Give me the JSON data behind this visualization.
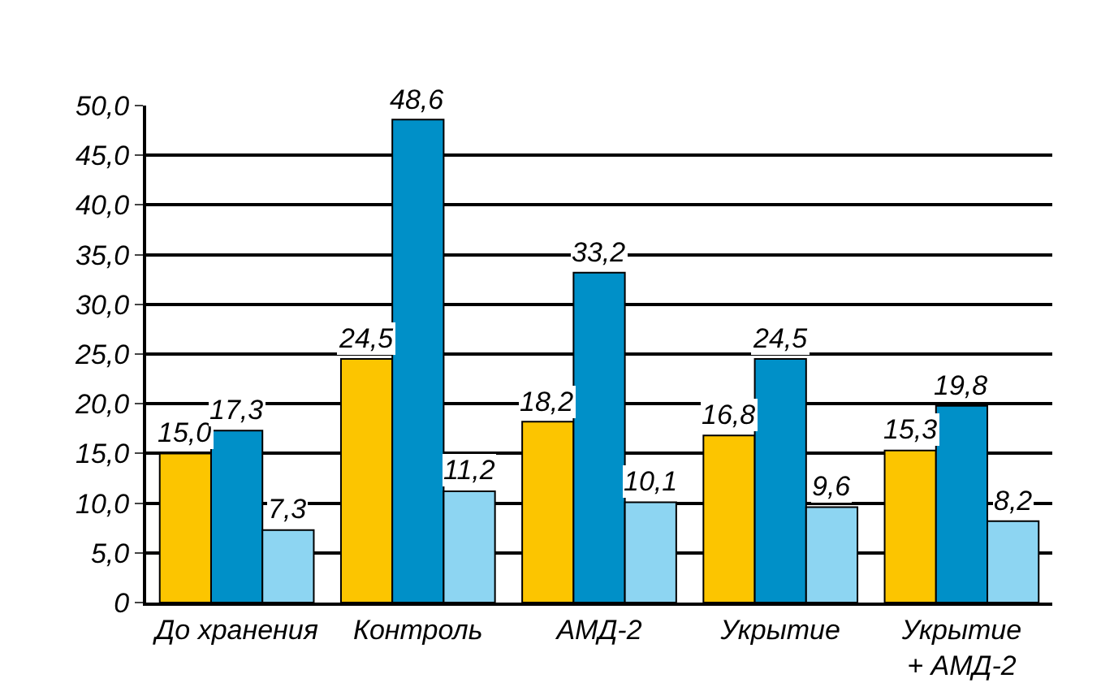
{
  "chart_data": {
    "type": "bar",
    "categories": [
      "До хранения",
      "Контроль",
      "АМД-2",
      "Укрытие",
      "Укрытие\n+ АМД-2"
    ],
    "series": [
      {
        "color": "#fcc500",
        "values": [
          15.0,
          24.5,
          18.2,
          16.8,
          15.3
        ]
      },
      {
        "color": "#0090c8",
        "values": [
          17.3,
          48.6,
          33.2,
          24.5,
          19.8
        ]
      },
      {
        "color": "#8dd5f2",
        "values": [
          7.3,
          11.2,
          10.1,
          9.6,
          8.2
        ]
      }
    ],
    "value_labels": [
      [
        "15,0",
        "24,5",
        "18,2",
        "16,8",
        "15,3"
      ],
      [
        "17,3",
        "48,6",
        "33,2",
        "24,5",
        "19,8"
      ],
      [
        "7,3",
        "11,2",
        "10,1",
        "9,6",
        "8,2"
      ]
    ],
    "ylim": [
      0,
      50
    ],
    "yticks": [
      {
        "value": 0,
        "label": "0"
      },
      {
        "value": 5,
        "label": "5,0"
      },
      {
        "value": 10,
        "label": "10,0"
      },
      {
        "value": 15,
        "label": "15,0"
      },
      {
        "value": 20,
        "label": "20,0"
      },
      {
        "value": 25,
        "label": "25,0"
      },
      {
        "value": 30,
        "label": "30,0"
      },
      {
        "value": 35,
        "label": "35,0"
      },
      {
        "value": 40,
        "label": "40,0"
      },
      {
        "value": 45,
        "label": "45,0"
      },
      {
        "value": 50,
        "label": "50,0"
      }
    ],
    "grid": "y",
    "legend": false
  }
}
